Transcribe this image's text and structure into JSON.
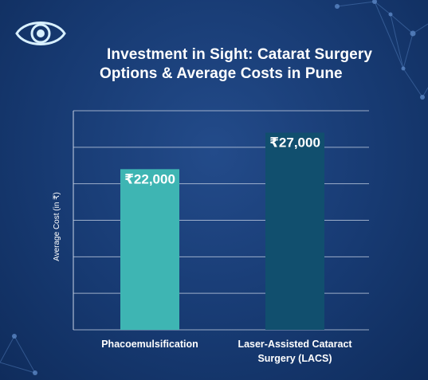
{
  "title_lines": [
    "Investment in Sight: Catarat Surgery",
    "Options & Average Costs in Pune"
  ],
  "icon": "eye-icon",
  "colors": {
    "background": "#173a72",
    "bar_1": "#3eb5b3",
    "bar_2": "#114f6e",
    "grid": "#c9d4e6"
  },
  "chart_data": {
    "type": "bar",
    "title": "Investment in Sight: Catarat Surgery Options & Average Costs in Pune",
    "ylabel": "Average Cost (in ₹)",
    "xlabel": "",
    "ylim": [
      0,
      30000
    ],
    "grid": true,
    "categories": [
      [
        "Phacoemulsification"
      ],
      [
        "Laser-Assisted Cataract",
        "Surgery (LACS)"
      ]
    ],
    "values": [
      22000,
      27000
    ],
    "data_labels": [
      "₹22,000",
      "₹27,000"
    ]
  }
}
